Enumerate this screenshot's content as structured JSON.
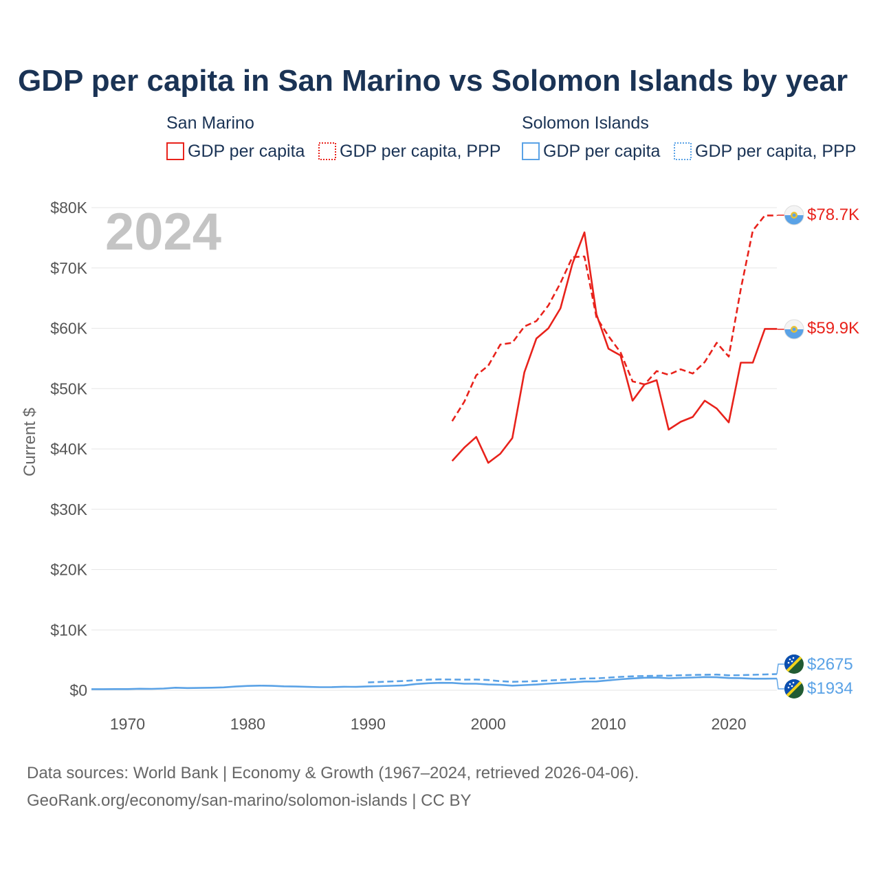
{
  "title": "GDP per capita in San Marino vs Solomon Islands by year",
  "year_watermark": "2024",
  "legend": {
    "groups": [
      {
        "country": "San Marino",
        "items": [
          "GDP per capita",
          "GDP per capita, PPP"
        ]
      },
      {
        "country": "Solomon Islands",
        "items": [
          "GDP per capita",
          "GDP per capita, PPP"
        ]
      }
    ]
  },
  "colors": {
    "san_marino": "#e8221b",
    "solomon_islands": "#5aa2e6",
    "title": "#1a3355",
    "grid": "#e6e6e6"
  },
  "end_labels": {
    "sm_ppp": "$78.7K",
    "sm_gdp": "$59.9K",
    "si_ppp": "$2675",
    "si_gdp": "$1934"
  },
  "source": {
    "line1": "Data sources: World Bank | Economy & Growth (1967–2024, retrieved 2026-04-06).",
    "line2": "GeoRank.org/economy/san-marino/solomon-islands | CC BY"
  },
  "chart_data": {
    "type": "line",
    "title": "GDP per capita in San Marino vs Solomon Islands by year",
    "xlabel": "",
    "ylabel": "Current $",
    "xlim": [
      1967,
      2024
    ],
    "ylim": [
      0,
      80000
    ],
    "x_ticks": [
      1970,
      1980,
      1990,
      2000,
      2010,
      2020
    ],
    "x_tick_labels": [
      "1970",
      "1980",
      "1990",
      "2000",
      "2010",
      "2020"
    ],
    "y_ticks": [
      0,
      10000,
      20000,
      30000,
      40000,
      50000,
      60000,
      70000,
      80000
    ],
    "y_tick_labels": [
      "$0",
      "$10K",
      "$20K",
      "$30K",
      "$40K",
      "$50K",
      "$60K",
      "$70K",
      "$80K"
    ],
    "grid": true,
    "series": [
      {
        "key": "sm_gdp",
        "name": "San Marino — GDP per capita",
        "dash": "solid",
        "color": "#e8221b",
        "x": [
          1997,
          1998,
          1999,
          2000,
          2001,
          2002,
          2003,
          2004,
          2005,
          2006,
          2007,
          2008,
          2009,
          2010,
          2011,
          2012,
          2013,
          2014,
          2015,
          2016,
          2017,
          2018,
          2019,
          2020,
          2021,
          2022,
          2023,
          2024
        ],
        "y": [
          38000,
          40200,
          42000,
          37700,
          39200,
          41800,
          52700,
          58300,
          60000,
          63300,
          70700,
          75900,
          62300,
          56600,
          55500,
          48000,
          50700,
          51400,
          43200,
          44500,
          45300,
          48000,
          46700,
          44400,
          54300,
          54300,
          59900,
          59900
        ]
      },
      {
        "key": "sm_ppp",
        "name": "San Marino — GDP per capita, PPP",
        "dash": "dashed",
        "color": "#e8221b",
        "x": [
          1997,
          1998,
          1999,
          2000,
          2001,
          2002,
          2003,
          2004,
          2005,
          2006,
          2007,
          2008,
          2009,
          2010,
          2011,
          2012,
          2013,
          2014,
          2015,
          2016,
          2017,
          2018,
          2019,
          2020,
          2021,
          2022,
          2023,
          2024
        ],
        "y": [
          44600,
          47800,
          52200,
          53800,
          57300,
          57600,
          60300,
          61200,
          63800,
          67500,
          71800,
          71900,
          61800,
          58700,
          56000,
          51200,
          50700,
          52900,
          52300,
          53200,
          52500,
          54400,
          57600,
          55300,
          66500,
          76200,
          78700,
          78700
        ]
      },
      {
        "key": "si_gdp",
        "name": "Solomon Islands — GDP per capita",
        "dash": "solid",
        "color": "#5aa2e6",
        "x": [
          1967,
          1968,
          1969,
          1970,
          1971,
          1972,
          1973,
          1974,
          1975,
          1976,
          1977,
          1978,
          1979,
          1980,
          1981,
          1982,
          1983,
          1984,
          1985,
          1986,
          1987,
          1988,
          1989,
          1990,
          1991,
          1992,
          1993,
          1994,
          1995,
          1996,
          1997,
          1998,
          1999,
          2000,
          2001,
          2002,
          2003,
          2004,
          2005,
          2006,
          2007,
          2008,
          2009,
          2010,
          2011,
          2012,
          2013,
          2014,
          2015,
          2016,
          2017,
          2018,
          2019,
          2020,
          2021,
          2022,
          2023,
          2024
        ],
        "y": [
          180,
          185,
          190,
          195,
          250,
          230,
          290,
          420,
          370,
          390,
          420,
          480,
          620,
          720,
          760,
          730,
          650,
          620,
          560,
          510,
          520,
          580,
          560,
          640,
          680,
          740,
          810,
          1040,
          1160,
          1230,
          1220,
          1080,
          1080,
          960,
          900,
          760,
          860,
          950,
          1080,
          1200,
          1300,
          1450,
          1460,
          1640,
          1820,
          1960,
          2070,
          2100,
          2000,
          2050,
          2110,
          2190,
          2150,
          2030,
          2010,
          1920,
          1920,
          1934
        ]
      },
      {
        "key": "si_ppp",
        "name": "Solomon Islands — GDP per capita, PPP",
        "dash": "dashed",
        "color": "#5aa2e6",
        "x": [
          1990,
          1991,
          1992,
          1993,
          1994,
          1995,
          1996,
          1997,
          1998,
          1999,
          2000,
          2001,
          2002,
          2003,
          2004,
          2005,
          2006,
          2007,
          2008,
          2009,
          2010,
          2011,
          2012,
          2013,
          2014,
          2015,
          2016,
          2017,
          2018,
          2019,
          2020,
          2021,
          2022,
          2023,
          2024
        ],
        "y": [
          1300,
          1380,
          1460,
          1540,
          1660,
          1750,
          1800,
          1780,
          1760,
          1780,
          1700,
          1500,
          1400,
          1450,
          1520,
          1620,
          1720,
          1830,
          1940,
          1970,
          2080,
          2220,
          2310,
          2370,
          2400,
          2420,
          2480,
          2530,
          2570,
          2600,
          2470,
          2500,
          2560,
          2620,
          2675
        ]
      }
    ]
  }
}
